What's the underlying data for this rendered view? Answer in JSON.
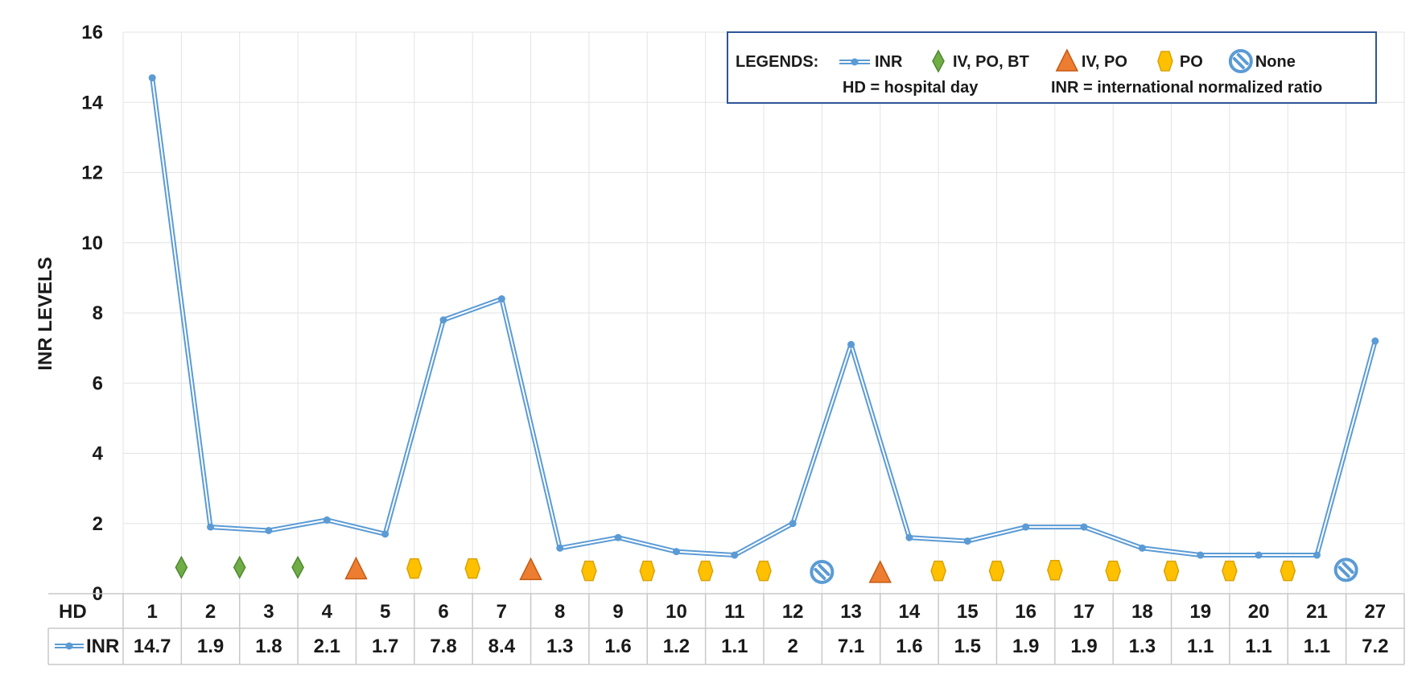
{
  "chart_data": {
    "type": "line",
    "ylabel": "INR LEVELS",
    "ylim": [
      0,
      16
    ],
    "yticks": [
      "0",
      "2",
      "4",
      "6",
      "8",
      "10",
      "12",
      "14",
      "16"
    ],
    "grid": true,
    "x_header": "HD",
    "categories": [
      "1",
      "2",
      "3",
      "4",
      "5",
      "6",
      "7",
      "8",
      "9",
      "10",
      "11",
      "12",
      "13",
      "14",
      "15",
      "16",
      "17",
      "18",
      "19",
      "20",
      "21",
      "27"
    ],
    "series": [
      {
        "name": "INR",
        "values": [
          14.7,
          1.9,
          1.8,
          2.1,
          1.7,
          7.8,
          8.4,
          1.3,
          1.6,
          1.2,
          1.1,
          2,
          7.1,
          1.6,
          1.5,
          1.9,
          1.9,
          1.3,
          1.1,
          1.1,
          1.1,
          7.2
        ],
        "value_labels": [
          "14.7",
          "1.9",
          "1.8",
          "2.1",
          "1.7",
          "7.8",
          "8.4",
          "1.3",
          "1.6",
          "1.2",
          "1.1",
          "2",
          "7.1",
          "1.6",
          "1.5",
          "1.9",
          "1.9",
          "1.3",
          "1.1",
          "1.1",
          "1.1",
          "7.2"
        ],
        "color": "#5b9bd5"
      }
    ],
    "treatment_markers": [
      {
        "after_index": 0,
        "kind": "diamond",
        "y": 0.75
      },
      {
        "after_index": 1,
        "kind": "diamond",
        "y": 0.75
      },
      {
        "after_index": 2,
        "kind": "diamond",
        "y": 0.75
      },
      {
        "after_index": 3,
        "kind": "triangle",
        "y": 0.7
      },
      {
        "after_index": 4,
        "kind": "hexagon",
        "y": 0.72
      },
      {
        "after_index": 5,
        "kind": "hexagon",
        "y": 0.72
      },
      {
        "after_index": 6,
        "kind": "triangle",
        "y": 0.68
      },
      {
        "after_index": 7,
        "kind": "hexagon",
        "y": 0.65
      },
      {
        "after_index": 8,
        "kind": "hexagon",
        "y": 0.65
      },
      {
        "after_index": 9,
        "kind": "hexagon",
        "y": 0.65
      },
      {
        "after_index": 10,
        "kind": "hexagon",
        "y": 0.65
      },
      {
        "after_index": 11,
        "kind": "none",
        "y": 0.62
      },
      {
        "after_index": 12,
        "kind": "triangle",
        "y": 0.6
      },
      {
        "after_index": 13,
        "kind": "hexagon",
        "y": 0.65
      },
      {
        "after_index": 14,
        "kind": "hexagon",
        "y": 0.65
      },
      {
        "after_index": 15,
        "kind": "hexagon",
        "y": 0.67
      },
      {
        "after_index": 16,
        "kind": "hexagon",
        "y": 0.65
      },
      {
        "after_index": 17,
        "kind": "hexagon",
        "y": 0.65
      },
      {
        "after_index": 18,
        "kind": "hexagon",
        "y": 0.65
      },
      {
        "after_index": 19,
        "kind": "hexagon",
        "y": 0.65
      },
      {
        "after_index": 20,
        "kind": "none",
        "y": 0.68
      }
    ],
    "legend": {
      "placement": "top-right",
      "title": "LEGENDS:",
      "items": [
        {
          "kind": "line",
          "label": "INR"
        },
        {
          "kind": "diamond",
          "label": "IV, PO, BT"
        },
        {
          "kind": "triangle",
          "label": "IV, PO"
        },
        {
          "kind": "hexagon",
          "label": "PO"
        },
        {
          "kind": "none",
          "label": "None"
        }
      ],
      "notes": [
        "HD = hospital day",
        "INR = international normalized ratio"
      ]
    },
    "colors": {
      "line": "#5b9bd5",
      "diamond": "#70ad47",
      "triangle": "#ed7d31",
      "hexagon": "#ffc000",
      "none": "#5b9bd5"
    }
  }
}
